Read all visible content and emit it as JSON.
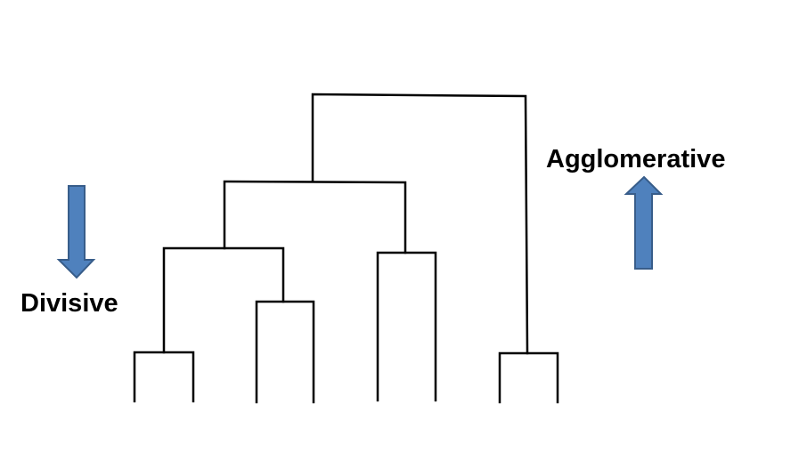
{
  "labels": {
    "agglomerative": "Agglomerative",
    "divisive": "Divisive"
  },
  "colors": {
    "line": "#000000",
    "arrow_fill": "#4f81bd",
    "arrow_stroke": "#385d8a",
    "background": "#ffffff"
  },
  "arrows": {
    "agglomerative": "up-arrow",
    "divisive": "down-arrow"
  }
}
